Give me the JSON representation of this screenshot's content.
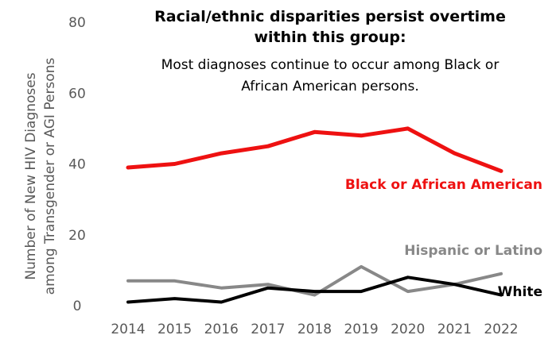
{
  "chart_data": {
    "type": "line",
    "title_lines": [
      "Racial/ethnic disparities persist overtime",
      "within this group:"
    ],
    "subtitle_lines": [
      "Most diagnoses continue to occur among Black or",
      "African American persons."
    ],
    "ylabel_lines": [
      "Number of New HIV Diagnoses",
      "among Transgender or AGI Persons"
    ],
    "xlabel": "",
    "x": [
      "2014",
      "2015",
      "2016",
      "2017",
      "2018",
      "2019",
      "2020",
      "2021",
      "2022"
    ],
    "ylim": [
      0,
      80
    ],
    "yticks": [
      0,
      20,
      40,
      60,
      80
    ],
    "grid": false,
    "series": [
      {
        "name": "Black or African American",
        "color": "#ee1111",
        "values": [
          39,
          40,
          43,
          45,
          49,
          48,
          50,
          43,
          38
        ]
      },
      {
        "name": "Hispanic or Latino",
        "color": "#888888",
        "values": [
          7,
          7,
          5,
          6,
          3,
          11,
          4,
          6,
          9
        ]
      },
      {
        "name": "White",
        "color": "#000000",
        "values": [
          1,
          2,
          1,
          5,
          4,
          4,
          8,
          6,
          3
        ]
      }
    ]
  }
}
